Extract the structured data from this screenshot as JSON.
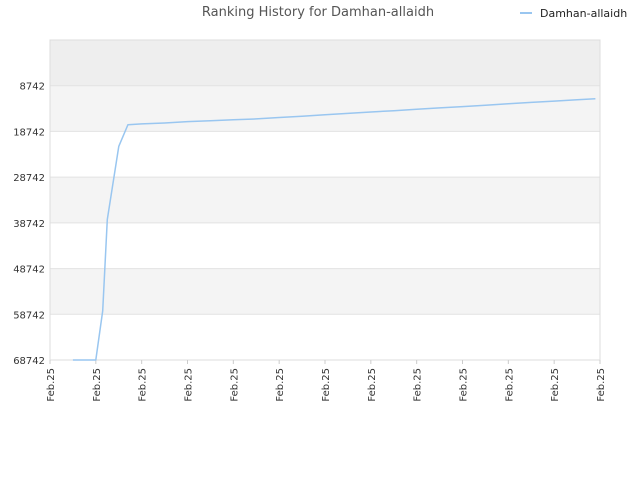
{
  "chart_data": {
    "type": "line",
    "title": "Ranking History for Damhan-allaidh",
    "xlabel": "",
    "ylabel": "",
    "y_inverted": true,
    "ylim": [
      68742,
      -1258
    ],
    "yticks": [
      8742,
      18742,
      28742,
      38742,
      48742,
      58742,
      68742
    ],
    "xtick_labels": [
      "Feb.25",
      "Feb.25",
      "Feb.25",
      "Feb.25",
      "Feb.25",
      "Feb.25",
      "Feb.25",
      "Feb.25",
      "Feb.25",
      "Feb.25",
      "Feb.25",
      "Feb.25",
      "Feb.25"
    ],
    "xlim": [
      0,
      12
    ],
    "grid": "horizontal bands",
    "legend_position": "top-right",
    "line_color": "#99c6f0",
    "series": [
      {
        "name": "Damhan-allaidh",
        "x": [
          0.5,
          0.8,
          1.0,
          1.15,
          1.25,
          1.5,
          1.7,
          2.0,
          2.5,
          3,
          3.5,
          4,
          4.5,
          5,
          5.5,
          6,
          6.5,
          7,
          7.5,
          8,
          8.5,
          9,
          9.5,
          10,
          10.5,
          11,
          11.5,
          11.9
        ],
        "y": [
          68742,
          68742,
          68742,
          58000,
          38000,
          22000,
          17300,
          17100,
          16900,
          16600,
          16400,
          16200,
          16000,
          15700,
          15400,
          15100,
          14800,
          14500,
          14200,
          13900,
          13600,
          13300,
          13000,
          12700,
          12400,
          12100,
          11800,
          11600
        ]
      }
    ]
  }
}
